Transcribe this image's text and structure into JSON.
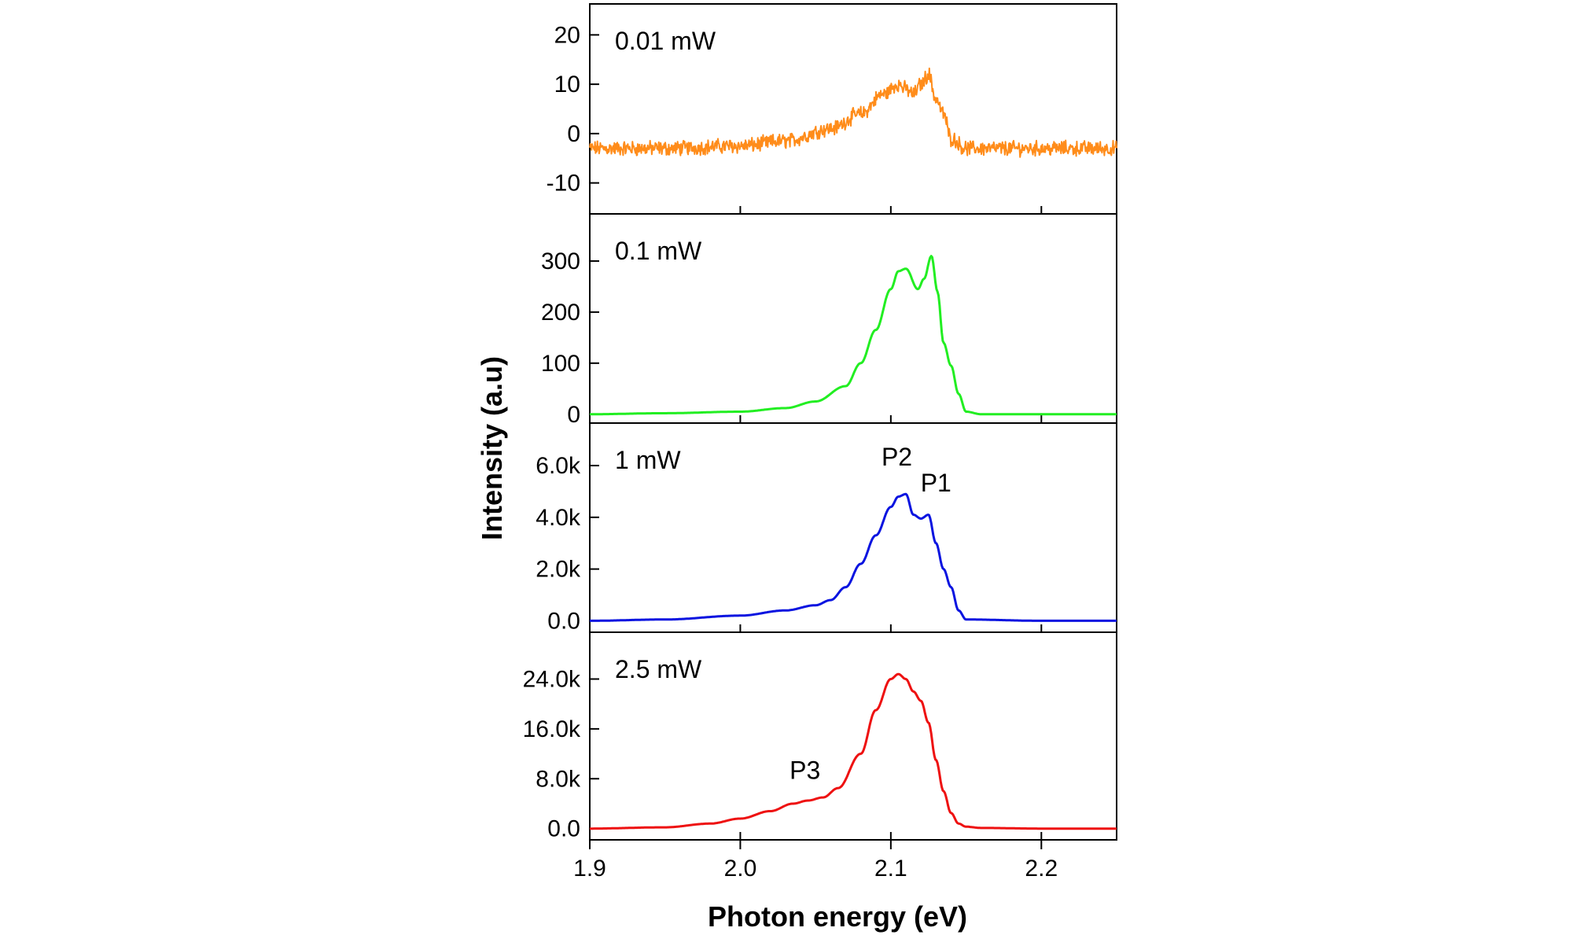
{
  "chart_data": {
    "type": "line",
    "layout": "4 stacked panels sharing x axis",
    "xlabel": "Photon energy (eV)",
    "ylabel": "Intensity (a.u)",
    "xlim": [
      1.9,
      2.25
    ],
    "xticks": [
      "1.9",
      "2.0",
      "2.1",
      "2.2"
    ],
    "panels": [
      {
        "label": "0.01 mW",
        "color": "#ff8c1a",
        "ylim": [
          -15,
          25
        ],
        "yticks": [
          "20",
          "10",
          "0",
          "-10"
        ],
        "noisy": true,
        "x": [
          1.9,
          1.95,
          2.0,
          2.03,
          2.06,
          2.08,
          2.095,
          2.105,
          2.11,
          2.115,
          2.12,
          2.125,
          2.13,
          2.135,
          2.14,
          2.15,
          2.2,
          2.25
        ],
        "y": [
          -3,
          -3,
          -2.5,
          -1.5,
          1,
          4,
          8,
          10,
          9,
          8,
          10,
          12,
          7,
          4,
          -1,
          -3,
          -3,
          -3
        ],
        "annotations": []
      },
      {
        "label": "0.1 mW",
        "color": "#22ee22",
        "ylim": [
          -5,
          380
        ],
        "yticks": [
          "300",
          "200",
          "100",
          "0"
        ],
        "noisy": false,
        "x": [
          1.9,
          1.95,
          2.0,
          2.03,
          2.05,
          2.07,
          2.08,
          2.09,
          2.1,
          2.105,
          2.11,
          2.118,
          2.122,
          2.127,
          2.131,
          2.135,
          2.14,
          2.145,
          2.15,
          2.16,
          2.2,
          2.25
        ],
        "y": [
          0,
          2,
          5,
          12,
          25,
          55,
          100,
          165,
          245,
          280,
          285,
          245,
          265,
          310,
          240,
          140,
          95,
          40,
          5,
          0,
          0,
          0
        ],
        "annotations": []
      },
      {
        "label": "1 mW",
        "color": "#0a14e0",
        "ylim": [
          -200,
          7400
        ],
        "yticks": [
          "6.0k",
          "4.0k",
          "2.0k",
          "0.0"
        ],
        "noisy": false,
        "x": [
          1.9,
          1.95,
          2.0,
          2.03,
          2.05,
          2.06,
          2.07,
          2.08,
          2.09,
          2.1,
          2.105,
          2.11,
          2.115,
          2.12,
          2.125,
          2.13,
          2.135,
          2.14,
          2.145,
          2.15,
          2.2,
          2.25
        ],
        "y": [
          0,
          50,
          200,
          400,
          600,
          800,
          1300,
          2200,
          3300,
          4400,
          4800,
          4900,
          4100,
          3950,
          4100,
          3000,
          2000,
          1300,
          400,
          50,
          0,
          0
        ],
        "annotations": [
          {
            "text": "P2",
            "x": 2.104,
            "y": 6000
          },
          {
            "text": "P1",
            "x": 2.13,
            "y": 5000
          }
        ]
      },
      {
        "label": "2.5 mW",
        "color": "#ee1111",
        "ylim": [
          -800,
          30500
        ],
        "yticks": [
          "24.0k",
          "16.0k",
          "8.0k",
          "0.0"
        ],
        "noisy": false,
        "x": [
          1.9,
          1.95,
          1.98,
          2.0,
          2.02,
          2.035,
          2.045,
          2.055,
          2.065,
          2.08,
          2.09,
          2.1,
          2.105,
          2.11,
          2.115,
          2.12,
          2.125,
          2.13,
          2.135,
          2.14,
          2.145,
          2.15,
          2.16,
          2.2,
          2.25
        ],
        "y": [
          0,
          200,
          800,
          1600,
          2800,
          4000,
          4500,
          5000,
          6500,
          12000,
          19000,
          24000,
          24800,
          24000,
          22000,
          20500,
          17000,
          11000,
          6000,
          2500,
          800,
          300,
          100,
          0,
          0
        ],
        "annotations": [
          {
            "text": "P3",
            "x": 2.043,
            "y": 8000
          }
        ]
      }
    ]
  }
}
